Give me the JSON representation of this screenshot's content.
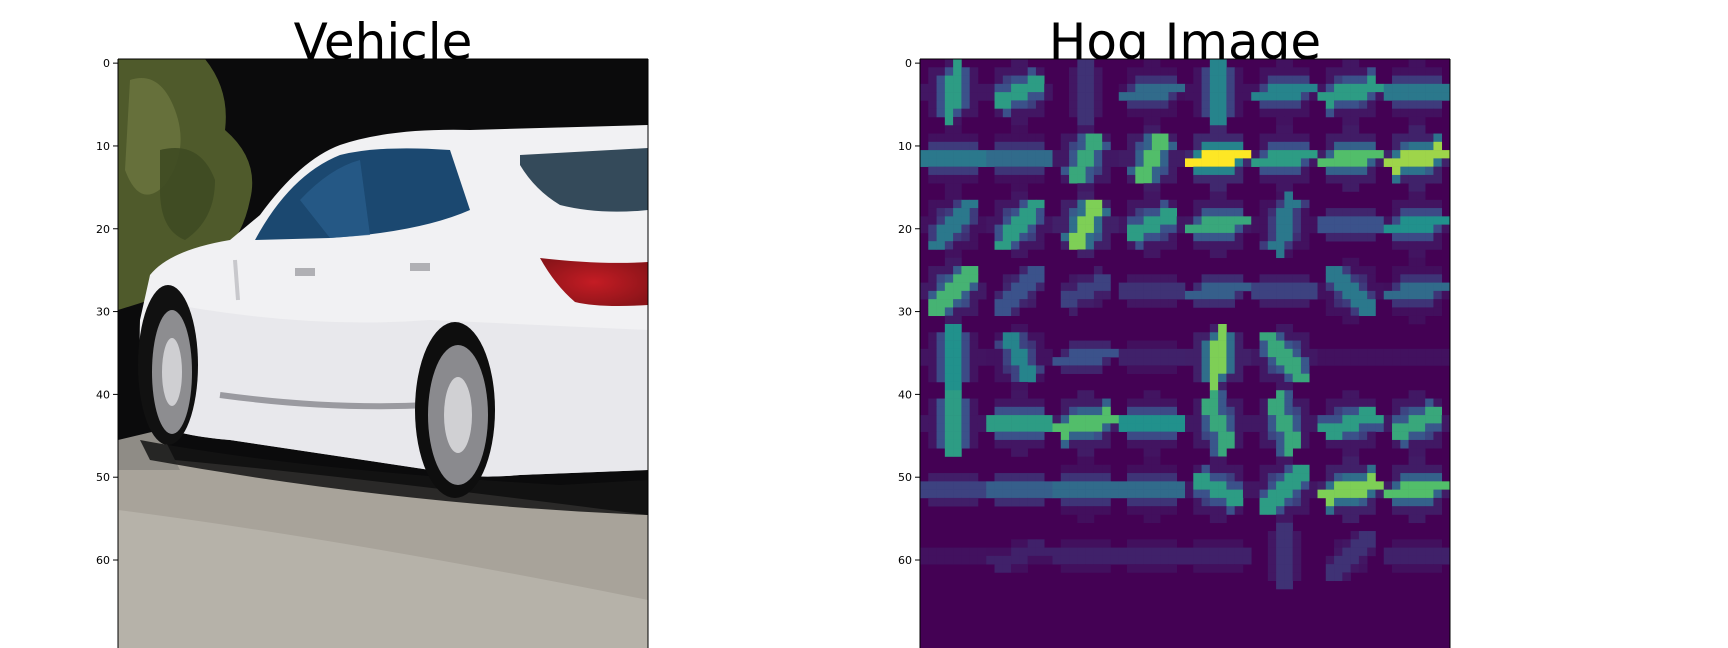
{
  "chart_data": [
    {
      "type": "image",
      "title": "Vehicle",
      "yticks": [
        0,
        10,
        20,
        30,
        40,
        50,
        60
      ],
      "ylim": [
        0,
        64
      ]
    },
    {
      "type": "heatmap",
      "title": "Hog Image",
      "colormap": "viridis",
      "yticks": [
        0,
        10,
        20,
        30,
        40,
        50,
        60
      ],
      "ylim": [
        0,
        64
      ],
      "cells": [
        8,
        8
      ],
      "cell_strength": [
        [
          0.55,
          0.55,
          0.15,
          0.35,
          0.45,
          0.45,
          0.55,
          0.4
        ],
        [
          0.4,
          0.35,
          0.6,
          0.7,
          1.0,
          0.55,
          0.7,
          0.85
        ],
        [
          0.4,
          0.55,
          0.8,
          0.55,
          0.6,
          0.4,
          0.25,
          0.5
        ],
        [
          0.65,
          0.25,
          0.2,
          0.15,
          0.3,
          0.2,
          0.4,
          0.35
        ],
        [
          0.5,
          0.45,
          0.25,
          0.1,
          0.8,
          0.6,
          0.05,
          0.05
        ],
        [
          0.55,
          0.55,
          0.7,
          0.5,
          0.6,
          0.6,
          0.55,
          0.6
        ],
        [
          0.2,
          0.3,
          0.35,
          0.35,
          0.55,
          0.55,
          0.8,
          0.7
        ],
        [
          0.05,
          0.1,
          0.1,
          0.1,
          0.1,
          0.15,
          0.15,
          0.1
        ]
      ],
      "cell_angle_deg": [
        [
          80,
          30,
          90,
          10,
          90,
          10,
          15,
          0
        ],
        [
          0,
          0,
          60,
          60,
          10,
          10,
          10,
          15
        ],
        [
          50,
          50,
          60,
          30,
          10,
          75,
          0,
          10
        ],
        [
          45,
          45,
          30,
          0,
          10,
          0,
          135,
          10
        ],
        [
          90,
          120,
          10,
          0,
          80,
          130,
          0,
          0
        ],
        [
          90,
          0,
          15,
          0,
          110,
          110,
          20,
          30
        ],
        [
          0,
          0,
          0,
          0,
          150,
          45,
          15,
          10
        ],
        [
          0,
          20,
          0,
          0,
          0,
          90,
          45,
          0
        ]
      ]
    }
  ]
}
